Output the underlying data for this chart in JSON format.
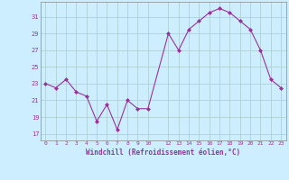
{
  "x": [
    0,
    1,
    2,
    3,
    4,
    5,
    6,
    7,
    8,
    9,
    10,
    12,
    13,
    14,
    15,
    16,
    17,
    18,
    19,
    20,
    21,
    22,
    23
  ],
  "y": [
    23,
    22.5,
    23.5,
    22,
    21.5,
    18.5,
    20.5,
    17.5,
    21,
    20,
    20,
    29,
    27,
    29.5,
    30.5,
    31.5,
    32,
    31.5,
    30.5,
    29.5,
    27,
    23.5,
    22.5
  ],
  "line_color": "#993399",
  "marker_color": "#993399",
  "bg_color": "#cceeff",
  "grid_color": "#aacccc",
  "xlabel": "Windchill (Refroidissement éolien,°C)",
  "xtick_positions": [
    0,
    1,
    2,
    3,
    4,
    5,
    6,
    7,
    8,
    9,
    10,
    12,
    13,
    14,
    15,
    16,
    17,
    18,
    19,
    20,
    21,
    22,
    23
  ],
  "xtick_labels": [
    "0",
    "1",
    "2",
    "3",
    "4",
    "5",
    "6",
    "7",
    "8",
    "9",
    "10",
    "12",
    "13",
    "14",
    "15",
    "16",
    "17",
    "18",
    "19",
    "20",
    "21",
    "22",
    "23"
  ],
  "ytick_values": [
    17,
    19,
    21,
    23,
    25,
    27,
    29,
    31
  ],
  "ylim": [
    16.2,
    32.8
  ],
  "xlim": [
    -0.5,
    23.5
  ]
}
